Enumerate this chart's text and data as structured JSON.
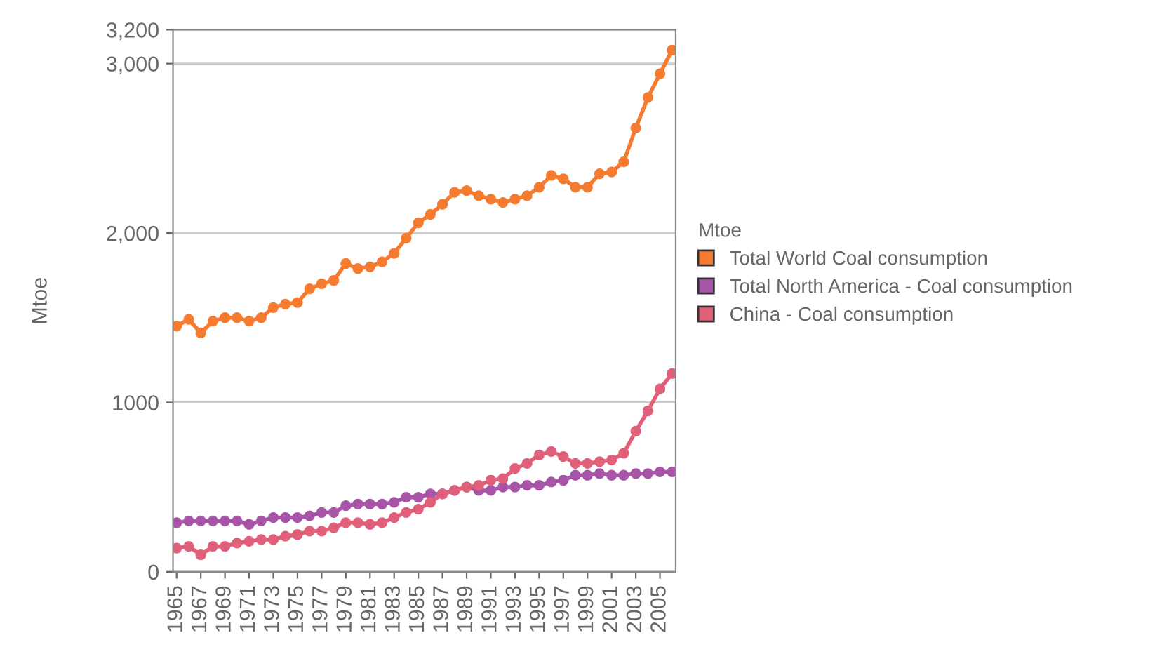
{
  "chart_data": {
    "type": "line",
    "ylabel": "Mtoe",
    "legend_title": "Mtoe",
    "legend": "right",
    "grid": "y",
    "marker": "circle",
    "line_style": "solid",
    "categories": [
      "1965",
      null,
      "1967",
      null,
      "1969",
      null,
      "1971",
      null,
      "1973",
      null,
      "1975",
      null,
      "1977",
      null,
      "1979",
      null,
      "1981",
      null,
      "1983",
      null,
      "1985",
      null,
      "1987",
      null,
      "1989",
      null,
      "1991",
      null,
      "1993",
      null,
      "1995",
      null,
      "1997",
      null,
      "1999",
      null,
      "2001",
      null,
      "2003",
      null,
      "2005",
      null
    ],
    "ylim": [
      0,
      3200
    ],
    "yticks": [
      0,
      1000,
      {
        "value": 2000,
        "label": "2,000"
      },
      {
        "value": 3000,
        "label": "3,000"
      },
      {
        "value": 3200,
        "label": "3,200"
      }
    ],
    "series": [
      {
        "name": "Total World Coal consumption",
        "color": "#f47b30",
        "values": [
          1450,
          1490,
          1410,
          1480,
          1500,
          1500,
          1480,
          1500,
          1560,
          1580,
          1590,
          1670,
          1700,
          1720,
          1820,
          1790,
          1800,
          1830,
          1880,
          1970,
          2060,
          2110,
          2170,
          2240,
          2250,
          2220,
          2200,
          2180,
          2200,
          2220,
          2270,
          2340,
          2320,
          2270,
          2270,
          2350,
          2360,
          2420,
          2620,
          2800,
          2940,
          3080
        ]
      },
      {
        "name": "Total North America - Coal consumption",
        "color": "#a855a8",
        "values": [
          290,
          300,
          300,
          300,
          300,
          300,
          280,
          300,
          320,
          320,
          320,
          330,
          350,
          350,
          390,
          400,
          400,
          400,
          410,
          440,
          440,
          460,
          460,
          480,
          500,
          480,
          480,
          500,
          500,
          510,
          510,
          530,
          540,
          570,
          570,
          580,
          570,
          570,
          580,
          580,
          590,
          590
        ]
      },
      {
        "name": "China - Coal consumption",
        "color": "#e0607a",
        "values": [
          140,
          150,
          100,
          150,
          150,
          170,
          180,
          190,
          190,
          210,
          220,
          240,
          240,
          260,
          290,
          290,
          280,
          290,
          320,
          350,
          370,
          410,
          460,
          480,
          500,
          510,
          540,
          550,
          610,
          640,
          690,
          710,
          680,
          640,
          640,
          650,
          660,
          700,
          830,
          950,
          1080,
          1170
        ]
      }
    ]
  }
}
